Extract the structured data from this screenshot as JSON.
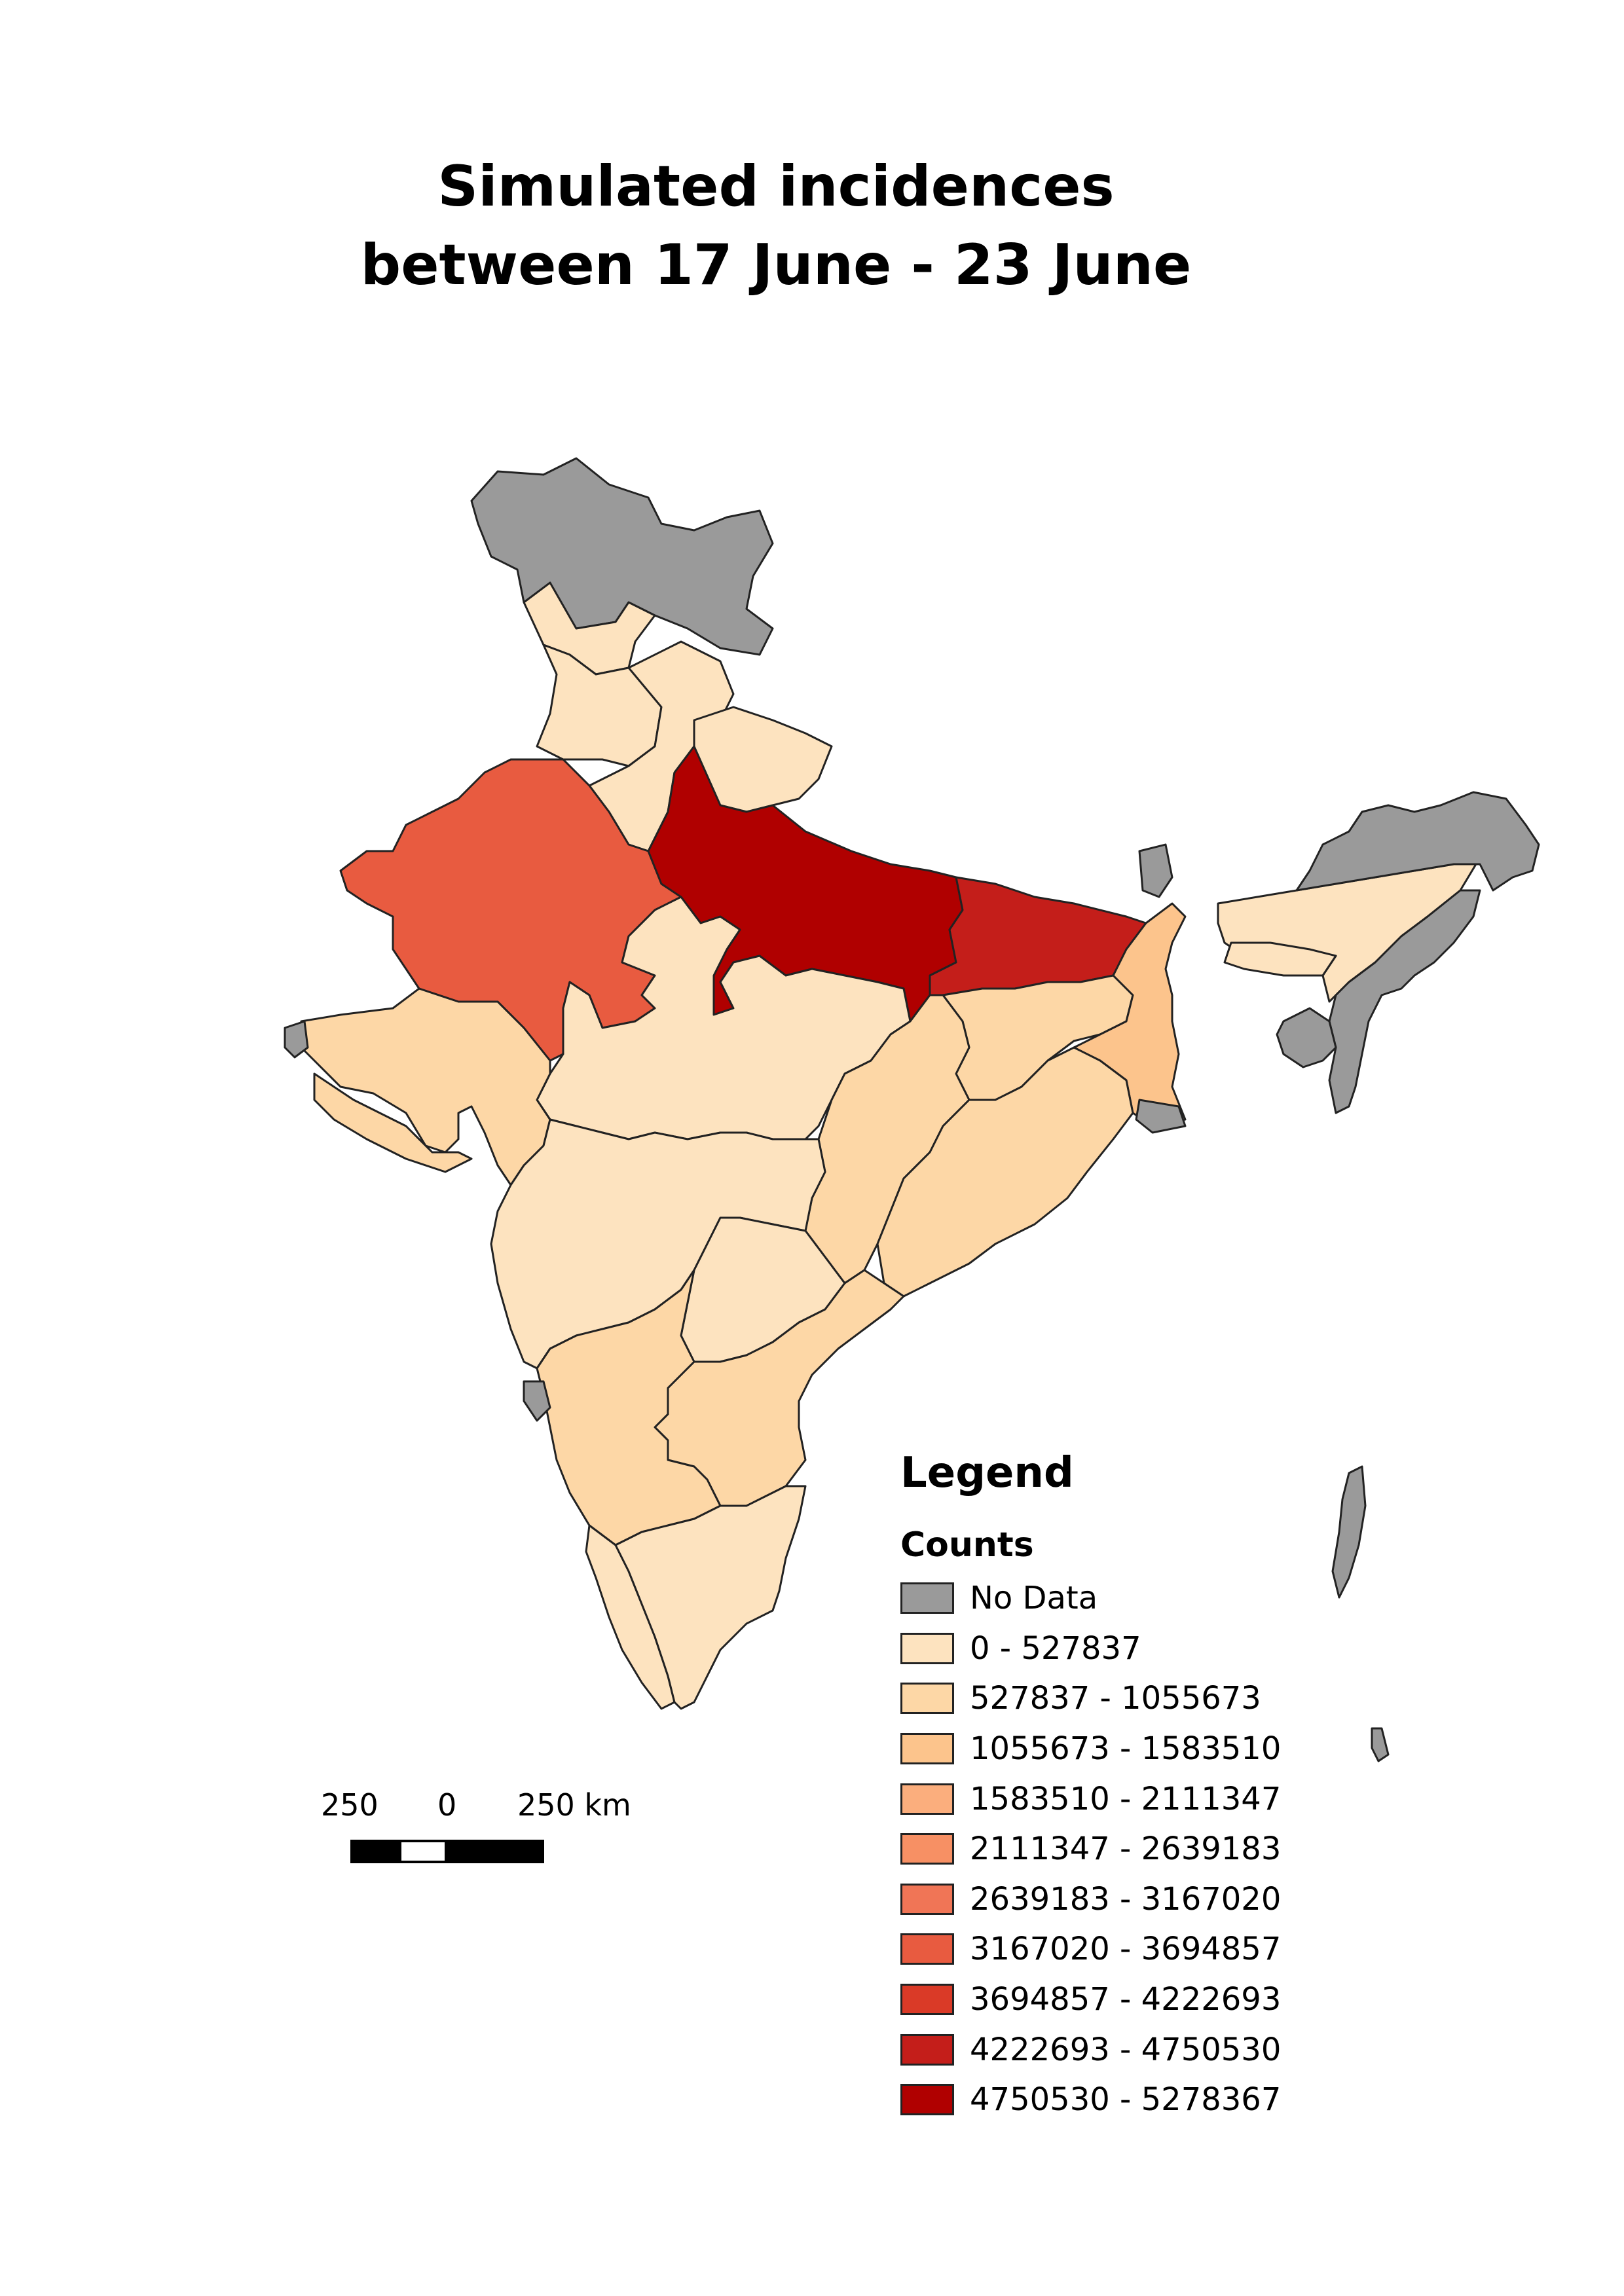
{
  "title": {
    "line1": "Simulated incidences",
    "line2": "between 17 June - 23 June"
  },
  "legend": {
    "title": "Legend",
    "subtitle": "Counts",
    "classes": [
      {
        "label": "No Data",
        "color": "#9a9a9a"
      },
      {
        "label": "0 - 527837",
        "color": "#fde3bf"
      },
      {
        "label": "527837 - 1055673",
        "color": "#fdd7a6"
      },
      {
        "label": "1055673 - 1583510",
        "color": "#fcc48c"
      },
      {
        "label": "1583510 - 2111347",
        "color": "#fbae7d"
      },
      {
        "label": "2111347 - 2639183",
        "color": "#f79064"
      },
      {
        "label": "2639183 - 3167020",
        "color": "#f07556"
      },
      {
        "label": "3167020 - 3694857",
        "color": "#e85b40"
      },
      {
        "label": "3694857 - 4222693",
        "color": "#da3a27"
      },
      {
        "label": "4222693 - 4750530",
        "color": "#c41e1a"
      },
      {
        "label": "4750530 - 5278367",
        "color": "#b00000"
      }
    ]
  },
  "scale_bar": {
    "labels": [
      "250",
      "0",
      "250 km"
    ]
  }
}
